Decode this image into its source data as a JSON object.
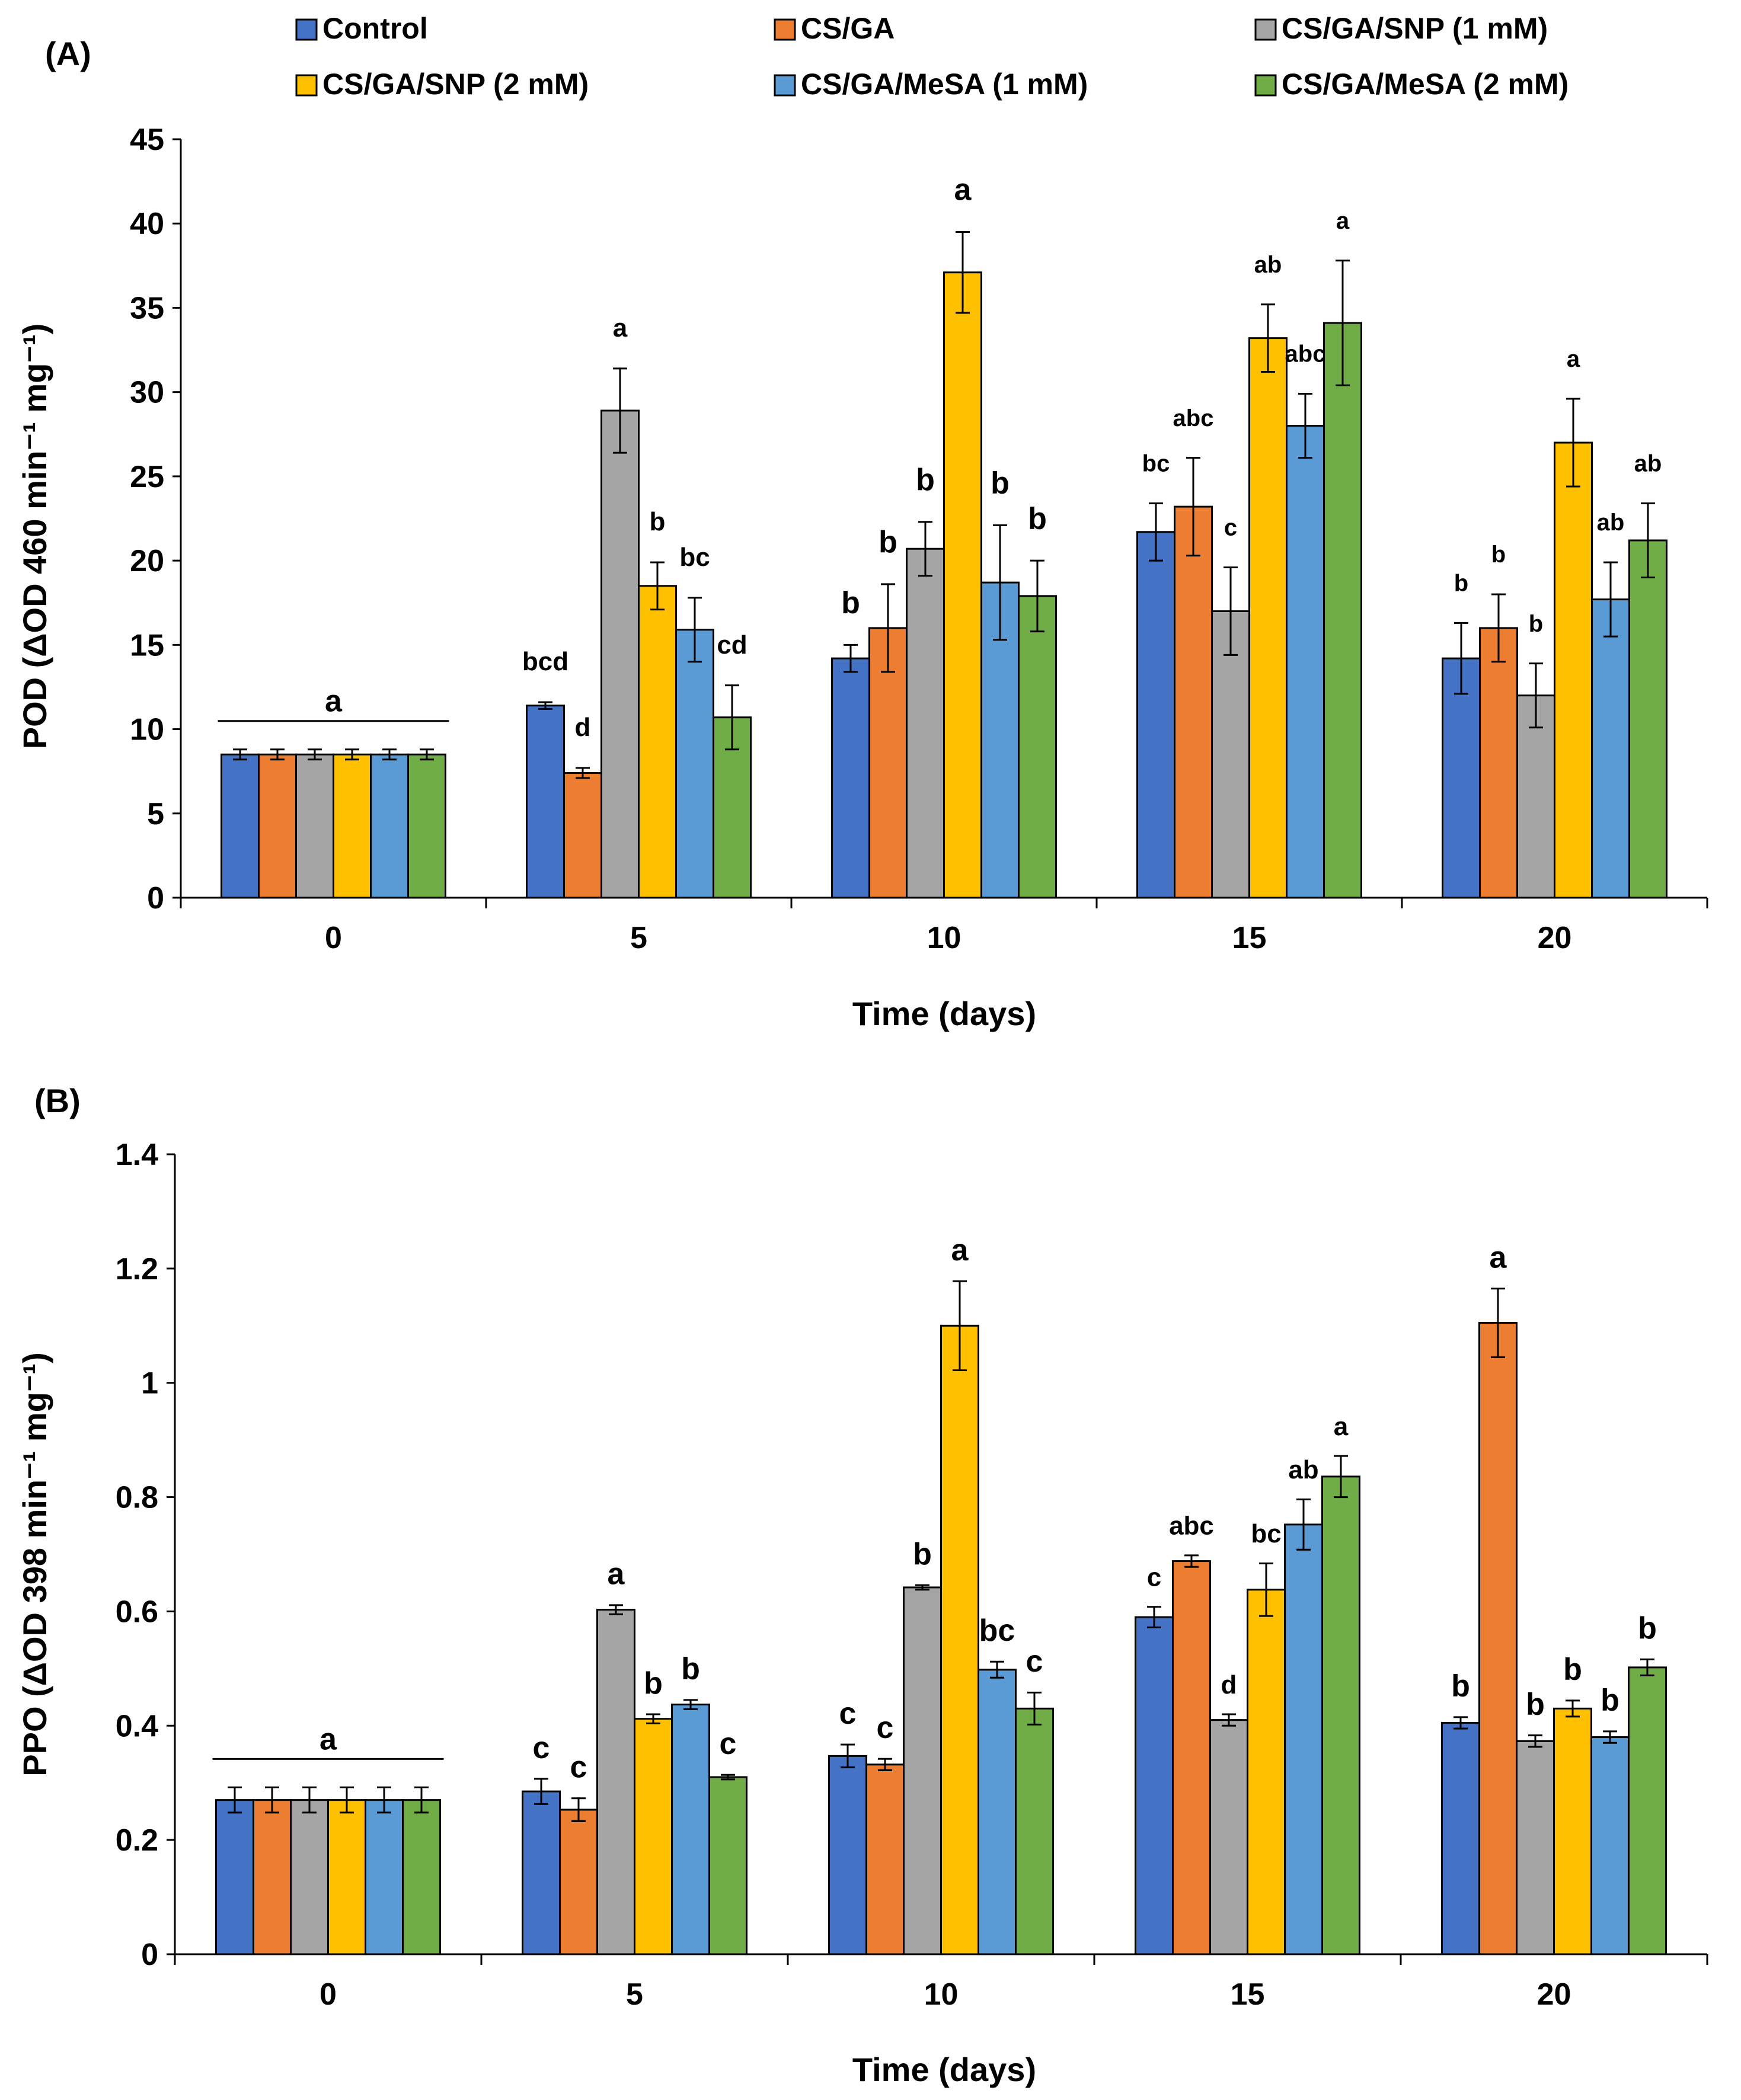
{
  "legend": {
    "entries": [
      {
        "name": "Control",
        "color": "#4472c4"
      },
      {
        "name": "CS/GA",
        "color": "#ed7d31"
      },
      {
        "name": "CS/GA/SNP (1 mM)",
        "color": "#a5a5a5"
      },
      {
        "name": "CS/GA/SNP (2 mM)",
        "color": "#ffc000"
      },
      {
        "name": "CS/GA/MeSA (1 mM)",
        "color": "#5b9bd5"
      },
      {
        "name": "CS/GA/MeSA (2 mM)",
        "color": "#70ad47"
      }
    ]
  },
  "chart_data": [
    {
      "type": "bar",
      "panel_label": "(A)",
      "categories": [
        "0",
        "5",
        "10",
        "15",
        "20"
      ],
      "xlabel": "Time (days)",
      "ylabel": "POD (ΔOD 460 min⁻¹ mg⁻¹)",
      "ylim": [
        0,
        45
      ],
      "yticks": [
        "0",
        "5",
        "10",
        "15",
        "20",
        "25",
        "30",
        "35",
        "40",
        "45"
      ],
      "group_label": "a",
      "series": [
        {
          "name": "Control",
          "values": [
            8.5,
            11.4,
            14.2,
            21.7,
            14.2
          ],
          "errors": [
            0.3,
            0.2,
            0.8,
            1.7,
            2.1
          ],
          "letters": [
            "",
            "bcd",
            "b",
            "bc",
            "b"
          ]
        },
        {
          "name": "CS/GA",
          "values": [
            8.5,
            7.4,
            16.0,
            23.2,
            16.0
          ],
          "errors": [
            0.3,
            0.3,
            2.6,
            2.9,
            2.0
          ],
          "letters": [
            "",
            "d",
            "b",
            "abc",
            "b"
          ]
        },
        {
          "name": "CS/GA/SNP (1 mM)",
          "values": [
            8.5,
            28.9,
            20.7,
            17.0,
            12.0
          ],
          "errors": [
            0.3,
            2.5,
            1.6,
            2.6,
            1.9
          ],
          "letters": [
            "",
            "a",
            "b",
            "c",
            "b"
          ]
        },
        {
          "name": "CS/GA/SNP (2 mM)",
          "values": [
            8.5,
            18.5,
            37.1,
            33.2,
            27.0
          ],
          "errors": [
            0.3,
            1.4,
            2.4,
            2.0,
            2.6
          ],
          "letters": [
            "",
            "b",
            "a",
            "ab",
            "a"
          ]
        },
        {
          "name": "CS/GA/MeSA (1 mM)",
          "values": [
            8.5,
            15.9,
            18.7,
            28.0,
            17.7
          ],
          "errors": [
            0.3,
            1.9,
            3.4,
            1.9,
            2.2
          ],
          "letters": [
            "",
            "bc",
            "b",
            "abc",
            "ab"
          ]
        },
        {
          "name": "CS/GA/MeSA (2 mM)",
          "values": [
            8.5,
            10.7,
            17.9,
            34.1,
            21.2
          ],
          "errors": [
            0.3,
            1.9,
            2.1,
            3.7,
            2.2
          ],
          "letters": [
            "",
            "cd",
            "b",
            "a",
            "ab"
          ]
        }
      ]
    },
    {
      "type": "bar",
      "panel_label": "(B)",
      "categories": [
        "0",
        "5",
        "10",
        "15",
        "20"
      ],
      "xlabel": "Time (days)",
      "ylabel": "PPO (ΔOD 398 min⁻¹ mg⁻¹)",
      "ylim": [
        0,
        1.4
      ],
      "yticks": [
        "0",
        "0.2",
        "0.4",
        "0.6",
        "0.8",
        "1",
        "1.2",
        "1.4"
      ],
      "group_label": "a",
      "series": [
        {
          "name": "Control",
          "values": [
            0.27,
            0.285,
            0.347,
            0.59,
            0.405
          ],
          "errors": [
            0.022,
            0.022,
            0.02,
            0.018,
            0.01
          ],
          "letters": [
            "",
            "c",
            "c",
            "c",
            "b"
          ]
        },
        {
          "name": "CS/GA",
          "values": [
            0.27,
            0.253,
            0.332,
            0.688,
            1.105
          ],
          "errors": [
            0.022,
            0.02,
            0.01,
            0.01,
            0.06
          ],
          "letters": [
            "",
            "c",
            "c",
            "abc",
            "a"
          ]
        },
        {
          "name": "CS/GA/SNP (1 mM)",
          "values": [
            0.27,
            0.603,
            0.642,
            0.41,
            0.373
          ],
          "errors": [
            0.022,
            0.008,
            0.004,
            0.01,
            0.01
          ],
          "letters": [
            "",
            "a",
            "b",
            "d",
            "b"
          ]
        },
        {
          "name": "CS/GA/SNP (2 mM)",
          "values": [
            0.27,
            0.412,
            1.1,
            0.638,
            0.43
          ],
          "errors": [
            0.022,
            0.008,
            0.078,
            0.046,
            0.014
          ],
          "letters": [
            "",
            "b",
            "a",
            "bc",
            "b"
          ]
        },
        {
          "name": "CS/GA/MeSA (1 mM)",
          "values": [
            0.27,
            0.437,
            0.498,
            0.752,
            0.38
          ],
          "errors": [
            0.022,
            0.008,
            0.014,
            0.044,
            0.01
          ],
          "letters": [
            "",
            "b",
            "bc",
            "ab",
            "b"
          ]
        },
        {
          "name": "CS/GA/MeSA (2 mM)",
          "values": [
            0.27,
            0.31,
            0.43,
            0.836,
            0.502
          ],
          "errors": [
            0.022,
            0.004,
            0.028,
            0.036,
            0.014
          ],
          "letters": [
            "",
            "c",
            "c",
            "a",
            "b"
          ]
        }
      ]
    }
  ]
}
